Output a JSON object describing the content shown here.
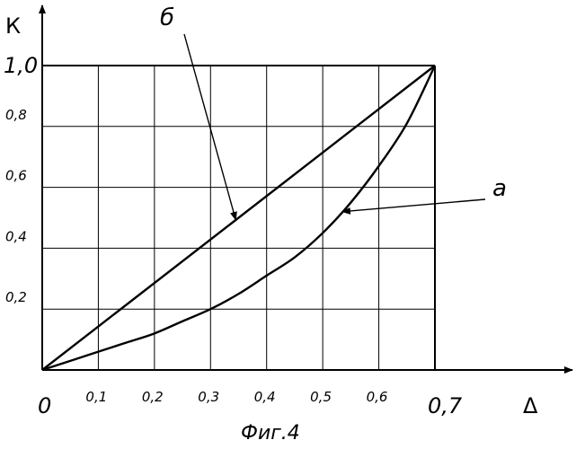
{
  "chart_data": {
    "type": "line",
    "xlabel": "Δ",
    "ylabel": "К",
    "caption": "Фиг.4",
    "xlim": [
      0,
      0.7
    ],
    "ylim": [
      0,
      1.0
    ],
    "grid": true,
    "x_ticks": [
      {
        "value": 0,
        "label": "0"
      },
      {
        "value": 0.1,
        "label": "0,1"
      },
      {
        "value": 0.2,
        "label": "0,2"
      },
      {
        "value": 0.3,
        "label": "0,3"
      },
      {
        "value": 0.4,
        "label": "0,4"
      },
      {
        "value": 0.5,
        "label": "0,5"
      },
      {
        "value": 0.6,
        "label": "0,6"
      },
      {
        "value": 0.7,
        "label": "0,7"
      }
    ],
    "y_ticks": [
      {
        "value": 0.2,
        "label": "0,2"
      },
      {
        "value": 0.4,
        "label": "0,4"
      },
      {
        "value": 0.6,
        "label": "0,6"
      },
      {
        "value": 0.8,
        "label": "0,8"
      },
      {
        "value": 1.0,
        "label": "1,0"
      }
    ],
    "series": [
      {
        "name": "б",
        "x": [
          0,
          0.7
        ],
        "y": [
          0,
          1.0
        ]
      },
      {
        "name": "а",
        "x": [
          0,
          0.05,
          0.1,
          0.15,
          0.2,
          0.25,
          0.3,
          0.35,
          0.4,
          0.45,
          0.5,
          0.55,
          0.6,
          0.65,
          0.7
        ],
        "y": [
          0,
          0.03,
          0.06,
          0.09,
          0.12,
          0.16,
          0.2,
          0.25,
          0.31,
          0.37,
          0.45,
          0.55,
          0.67,
          0.81,
          1.0
        ]
      }
    ],
    "annotations": [
      {
        "text": "б",
        "series": "б",
        "at_x": 0.345
      },
      {
        "text": "а",
        "series": "а",
        "at_x": 0.535
      }
    ]
  }
}
